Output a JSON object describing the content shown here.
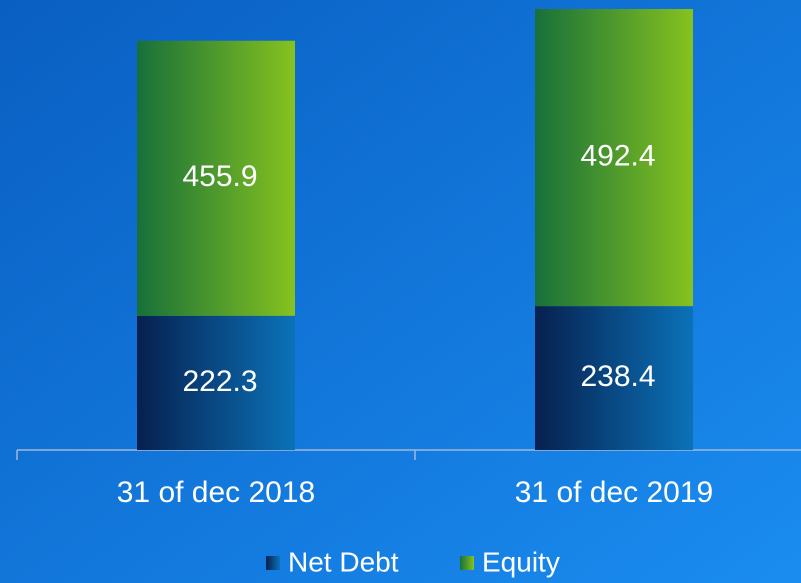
{
  "chart_data": {
    "type": "stacked_bar",
    "categories": [
      "31 of dec 2018",
      "31 of dec 2019"
    ],
    "series": [
      {
        "name": "Net Debt",
        "color": "#0b72b8",
        "values": [
          222.3,
          238.4
        ]
      },
      {
        "name": "Equity",
        "color": "#86c21f",
        "values": [
          455.9,
          492.4
        ]
      }
    ],
    "legend": "bottom"
  }
}
